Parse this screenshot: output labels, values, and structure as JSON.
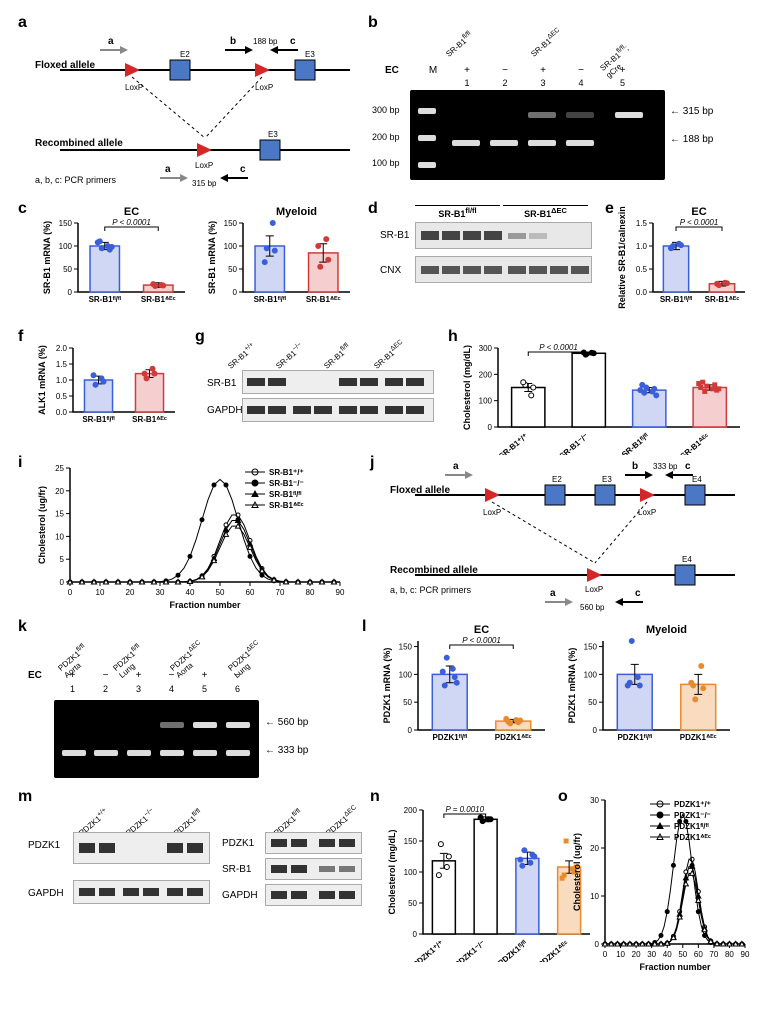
{
  "colors": {
    "blue": "#3a5fd9",
    "lightblue_fill": "#cfd7f5",
    "red": "#d13a3a",
    "lightred_fill": "#f5cfcf",
    "orange": "#e88b2e",
    "lightorange_fill": "#f9dcc0",
    "black": "#000000",
    "gray": "#808080",
    "exon_fill": "#4a78c4",
    "lox_fill": "#d62728",
    "gel_bg": "#1a1a1a",
    "band": "#c8c8c8"
  },
  "panel_labels": [
    "a",
    "b",
    "c",
    "d",
    "e",
    "f",
    "g",
    "h",
    "i",
    "j",
    "k",
    "l",
    "m",
    "n",
    "o"
  ],
  "a": {
    "floxed_label": "Floxed allele",
    "recombined_label": "Recombined allele",
    "primers_label": "a, b, c: PCR primers",
    "bp_top": "188 bp",
    "bp_bottom": "315 bp",
    "primers": [
      "a",
      "b",
      "c"
    ],
    "exons": [
      "E2",
      "E3"
    ],
    "lox": "LoxP"
  },
  "b": {
    "headers": [
      "SR-B1ᶠˡ/ᶠˡ",
      "SR-B1ᐞᴱᶜ",
      "SR-B1ᶠˡ/ᶠˡ; gCre"
    ],
    "ec_row": "EC",
    "ec_vals": [
      "+",
      "−",
      "+",
      "−",
      "+"
    ],
    "lanes": [
      "M",
      "1",
      "2",
      "3",
      "4",
      "5"
    ],
    "ladder": [
      "300 bp",
      "200 bp",
      "100 bp"
    ],
    "arrows": [
      "315 bp",
      "188 bp"
    ]
  },
  "c": {
    "left_title": "EC",
    "right_title": "Myeloid",
    "ylab": "SR-B1 mRNA (%)",
    "xlabels": [
      "SR-B1ᶠˡ/ᶠˡ",
      "SR-B1ᐞᴱᶜ"
    ],
    "pval": "P < 0.0001",
    "left": {
      "bars": [
        {
          "mean": 100,
          "sem": 8,
          "color": "#cfd7f5",
          "border": "#3a5fd9",
          "pts": [
            95,
            100,
            110,
            92,
            108,
            98
          ]
        },
        {
          "mean": 15,
          "sem": 5,
          "color": "#f5cfcf",
          "border": "#d13a3a",
          "pts": [
            13,
            15,
            17,
            14
          ]
        }
      ]
    },
    "right": {
      "bars": [
        {
          "mean": 100,
          "sem": 22,
          "color": "#cfd7f5",
          "border": "#3a5fd9",
          "pts": [
            95,
            150,
            65,
            90
          ]
        },
        {
          "mean": 85,
          "sem": 20,
          "color": "#f5cfcf",
          "border": "#d13a3a",
          "pts": [
            55,
            115,
            100,
            70
          ]
        }
      ]
    },
    "ylim": [
      0,
      150
    ],
    "ytick": 50
  },
  "d": {
    "headers": [
      "SR-B1ᶠˡ/ᶠˡ",
      "SR-B1ᐞᴱᶜ"
    ],
    "rows": [
      "SR-B1",
      "CNX"
    ]
  },
  "e": {
    "title": "EC",
    "ylab": "Relative SR-B1/calnexin",
    "xlabels": [
      "SR-B1ᶠˡ/ᶠˡ",
      "SR-B1ᐞᴱᶜ"
    ],
    "pval": "P < 0.0001",
    "bars": [
      {
        "mean": 1.0,
        "sem": 0.08,
        "color": "#cfd7f5",
        "border": "#3a5fd9",
        "pts": [
          1.0,
          1.05,
          0.95,
          1.02
        ]
      },
      {
        "mean": 0.18,
        "sem": 0.05,
        "color": "#f5cfcf",
        "border": "#d13a3a",
        "pts": [
          0.15,
          0.2,
          0.18,
          0.19
        ]
      }
    ],
    "ylim": [
      0,
      1.5
    ],
    "ytick": 0.5
  },
  "f": {
    "ylab": "ALK1 mRNA (%)",
    "xlabels": [
      "SR-B1ᶠˡ/ᶠˡ",
      "SR-B1ᐞᴱᶜ"
    ],
    "bars": [
      {
        "mean": 1.0,
        "sem": 0.12,
        "color": "#cfd7f5",
        "border": "#3a5fd9",
        "pts": [
          0.85,
          1.05,
          1.15,
          0.95
        ]
      },
      {
        "mean": 1.2,
        "sem": 0.12,
        "color": "#f5cfcf",
        "border": "#d13a3a",
        "pts": [
          1.05,
          1.35,
          1.2,
          1.2
        ]
      }
    ],
    "ylim": [
      0,
      2.0
    ],
    "ytick": 0.5
  },
  "g": {
    "headers": [
      "SR-B1⁺/⁺",
      "SR-B1⁻/⁻",
      "SR-B1ᶠˡ/ᶠˡ",
      "SR-B1ᐞᴱᶜ"
    ],
    "rows": [
      "SR-B1",
      "GAPDH"
    ]
  },
  "h": {
    "ylab": "Cholesterol (mg/dL)",
    "xlabels": [
      "SR-B1⁺/⁺",
      "SR-B1⁻/⁻",
      "SR-B1ᶠˡ/ᶠˡ",
      "SR-B1ᐞᴱᶜ"
    ],
    "pval": "P < 0.0001",
    "bars": [
      {
        "mean": 150,
        "sem": 15,
        "color": "#ffffff",
        "border": "#000",
        "pts": [
          160,
          120,
          170,
          150
        ],
        "shape": "circle"
      },
      {
        "mean": 280,
        "sem": 5,
        "color": "#ffffff",
        "border": "#000",
        "pts": [
          275,
          282,
          283,
          280
        ],
        "shape": "circle-filled"
      },
      {
        "mean": 140,
        "sem": 10,
        "color": "#cfd7f5",
        "border": "#3a5fd9",
        "pts": [
          150,
          135,
          130,
          145,
          160,
          120,
          140
        ],
        "shape": "circle-blue"
      },
      {
        "mean": 150,
        "sem": 10,
        "color": "#f5cfcf",
        "border": "#d13a3a",
        "pts": [
          155,
          145,
          135,
          160,
          170,
          140,
          150,
          145,
          165
        ],
        "shape": "square-red"
      }
    ],
    "ylim": [
      0,
      300
    ],
    "ytick": 100
  },
  "i": {
    "ylab": "Cholesterol (ug/fr)",
    "xlab": "Fraction number",
    "xlim": [
      0,
      90
    ],
    "xtick": 10,
    "ylim": [
      0,
      25
    ],
    "ytick": 5,
    "series": [
      {
        "name": "SR-B1⁺/⁺",
        "marker": "circle-open"
      },
      {
        "name": "SR-B1⁻/⁻",
        "marker": "circle-filled"
      },
      {
        "name": "SR-B1ᶠˡ/ᶠˡ",
        "marker": "triangle-filled"
      },
      {
        "name": "SR-B1ᐞᴱᶜ",
        "marker": "triangle-open"
      }
    ],
    "peak_x": 55
  },
  "j": {
    "floxed_label": "Floxed allele",
    "recombined_label": "Recombined allele",
    "primers_label": "a, b, c: PCR primers",
    "bp_top": "333 bp",
    "bp_bottom": "560 bp",
    "exons": [
      "E2",
      "E3",
      "E4"
    ],
    "lox": "LoxP"
  },
  "k": {
    "headers": [
      "PDZK1ᶠˡ/ᶠˡ Aorta",
      "PDZK1ᶠˡ/ᶠˡ Lung",
      "PDZK1ᐞᴱᶜ Aorta",
      "PDZK1ᐞᴱᶜ Lung"
    ],
    "ec_row": "EC",
    "ec_vals": [
      "+",
      "−",
      "+",
      "−",
      "+",
      "−"
    ],
    "lanes": [
      "1",
      "2",
      "3",
      "4",
      "5",
      "6"
    ],
    "arrows": [
      "560 bp",
      "333 bp"
    ]
  },
  "l": {
    "left_title": "EC",
    "right_title": "Myeloid",
    "ylab": "PDZK1 mRNA (%)",
    "xlabels": [
      "PDZK1ᶠˡ/ᶠˡ",
      "PDZK1ᐞᴱᶜ"
    ],
    "pval": "P < 0.0001",
    "left": {
      "bars": [
        {
          "mean": 100,
          "sem": 15,
          "color": "#cfd7f5",
          "border": "#3a5fd9",
          "pts": [
            130,
            110,
            80,
            95,
            105,
            85
          ]
        },
        {
          "mean": 16,
          "sem": 3,
          "color": "#f9dcc0",
          "border": "#e88b2e",
          "pts": [
            12,
            18,
            15,
            14,
            20,
            17
          ]
        }
      ]
    },
    "right": {
      "bars": [
        {
          "mean": 100,
          "sem": 18,
          "color": "#cfd7f5",
          "border": "#3a5fd9",
          "pts": [
            160,
            95,
            85,
            80,
            80
          ]
        },
        {
          "mean": 82,
          "sem": 18,
          "color": "#f9dcc0",
          "border": "#e88b2e",
          "pts": [
            55,
            115,
            80,
            75,
            85
          ]
        }
      ]
    },
    "ylim": [
      0,
      160
    ],
    "ytick": 50
  },
  "m": {
    "left_headers": [
      "PDZK1⁺/⁺",
      "PDZK1⁻/⁻",
      "PDZK1ᶠˡ/ᶠˡ"
    ],
    "right_headers": [
      "PDZK1ᶠˡ/ᶠˡ",
      "PDZK1ᐞᴱᶜ"
    ],
    "left_rows": [
      "PDZK1",
      "GAPDH"
    ],
    "right_rows": [
      "PDZK1",
      "SR-B1",
      "GAPDH"
    ]
  },
  "n": {
    "ylab": "Cholesterol (mg/dL)",
    "xlabels": [
      "PDZK1⁺/⁺",
      "PDZK1⁻/⁻",
      "PDZK1ᶠˡ/ᶠˡ",
      "PDZK1ᐞᴱᶜ"
    ],
    "pval": "P = 0.0010",
    "bars": [
      {
        "mean": 118,
        "sem": 12,
        "color": "#ffffff",
        "border": "#000",
        "pts": [
          145,
          108,
          95,
          125
        ],
        "shape": "circle"
      },
      {
        "mean": 185,
        "sem": 4,
        "color": "#ffffff",
        "border": "#000",
        "pts": [
          182,
          185,
          188,
          185
        ],
        "shape": "circle-filled"
      },
      {
        "mean": 122,
        "sem": 10,
        "color": "#cfd7f5",
        "border": "#3a5fd9",
        "pts": [
          135,
          115,
          110,
          128,
          120,
          125
        ],
        "shape": "circle-blue"
      },
      {
        "mean": 108,
        "sem": 10,
        "color": "#f9dcc0",
        "border": "#e88b2e",
        "pts": [
          150,
          105,
          95,
          100,
          90,
          108
        ],
        "shape": "square-orange"
      }
    ],
    "ylim": [
      0,
      200
    ],
    "ytick": 50
  },
  "o": {
    "ylab": "Cholesterol (ug/fr)",
    "xlab": "Fraction number",
    "xlim": [
      0,
      90
    ],
    "xtick": 10,
    "ylim": [
      0,
      30
    ],
    "ytick": 10,
    "series": [
      {
        "name": "PDZK1⁺/⁺",
        "marker": "circle-open"
      },
      {
        "name": "PDZK1⁻/⁻",
        "marker": "circle-filled"
      },
      {
        "name": "PDZK1ᶠˡ/ᶠˡ",
        "marker": "triangle-filled"
      },
      {
        "name": "PDZK1ᐞᴱᶜ",
        "marker": "triangle-open"
      }
    ]
  }
}
